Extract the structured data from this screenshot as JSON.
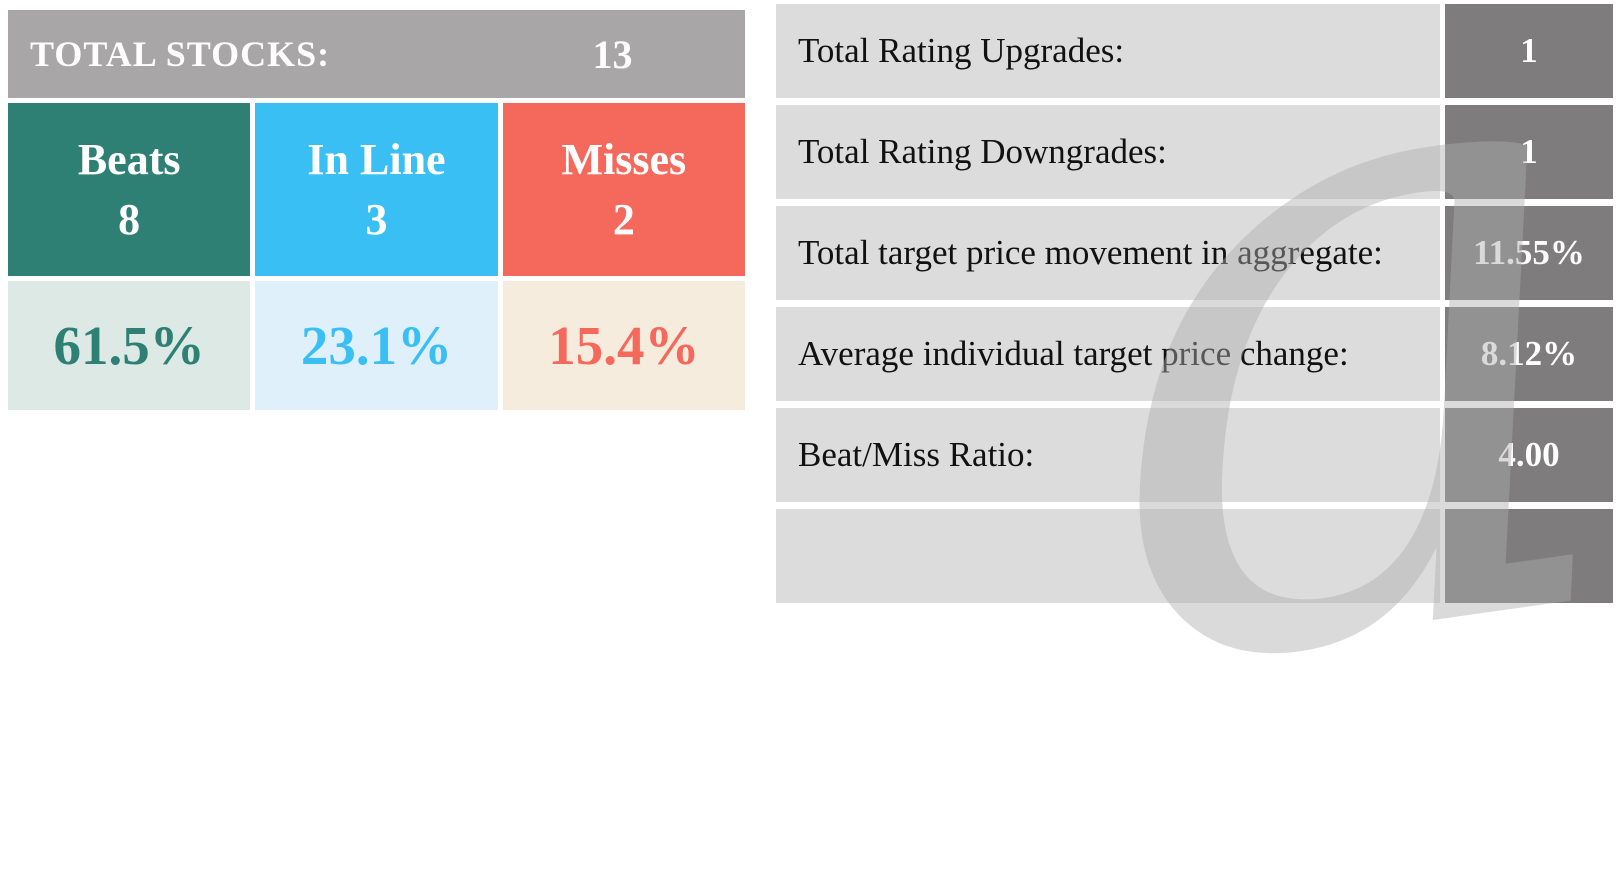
{
  "left_panel": {
    "header": {
      "label": "TOTAL STOCKS:",
      "value": "13"
    },
    "categories": [
      {
        "name": "Beats",
        "count": "8",
        "percent": "61.5%",
        "color": "#2F8074",
        "tint": "#DCE9E4"
      },
      {
        "name": "In Line",
        "count": "3",
        "percent": "23.1%",
        "color": "#3ABFF5",
        "tint": "#DFF0FA"
      },
      {
        "name": "Misses",
        "count": "2",
        "percent": "15.4%",
        "color": "#F4695C",
        "tint": "#F6ECDD"
      }
    ]
  },
  "right_panel": {
    "rows": [
      {
        "label": "Total Rating Upgrades:",
        "value": "1"
      },
      {
        "label": "Total Rating Downgrades:",
        "value": "1"
      },
      {
        "label": "Total target price movement in aggregate:",
        "value": "11.55%"
      },
      {
        "label": "Average individual target price change:",
        "value": "8.12%"
      },
      {
        "label": "Beat/Miss Ratio:",
        "value": "4.00"
      },
      {
        "label": "",
        "value": ""
      }
    ]
  },
  "watermark": {
    "glyph": "a"
  },
  "colors": {
    "header_bg": "#A9A6A7",
    "label_cell_bg": "#DCDCDC",
    "value_cell_bg": "#7E7C7C",
    "header_text": "#FFFFFF",
    "label_text": "#111111"
  },
  "chart_data": [
    {
      "type": "table",
      "title": "Earnings results summary",
      "total_stocks": 13,
      "categories": [
        "Beats",
        "In Line",
        "Misses"
      ],
      "counts": [
        8,
        3,
        2
      ],
      "percents": [
        61.5,
        23.1,
        15.4
      ]
    },
    {
      "type": "table",
      "title": "Rating and target price statistics",
      "rows": [
        [
          "Total Rating Upgrades:",
          "1"
        ],
        [
          "Total Rating Downgrades:",
          "1"
        ],
        [
          "Total target price movement in aggregate:",
          "11.55%"
        ],
        [
          "Average individual target price change:",
          "8.12%"
        ],
        [
          "Beat/Miss Ratio:",
          "4.00"
        ]
      ]
    }
  ]
}
